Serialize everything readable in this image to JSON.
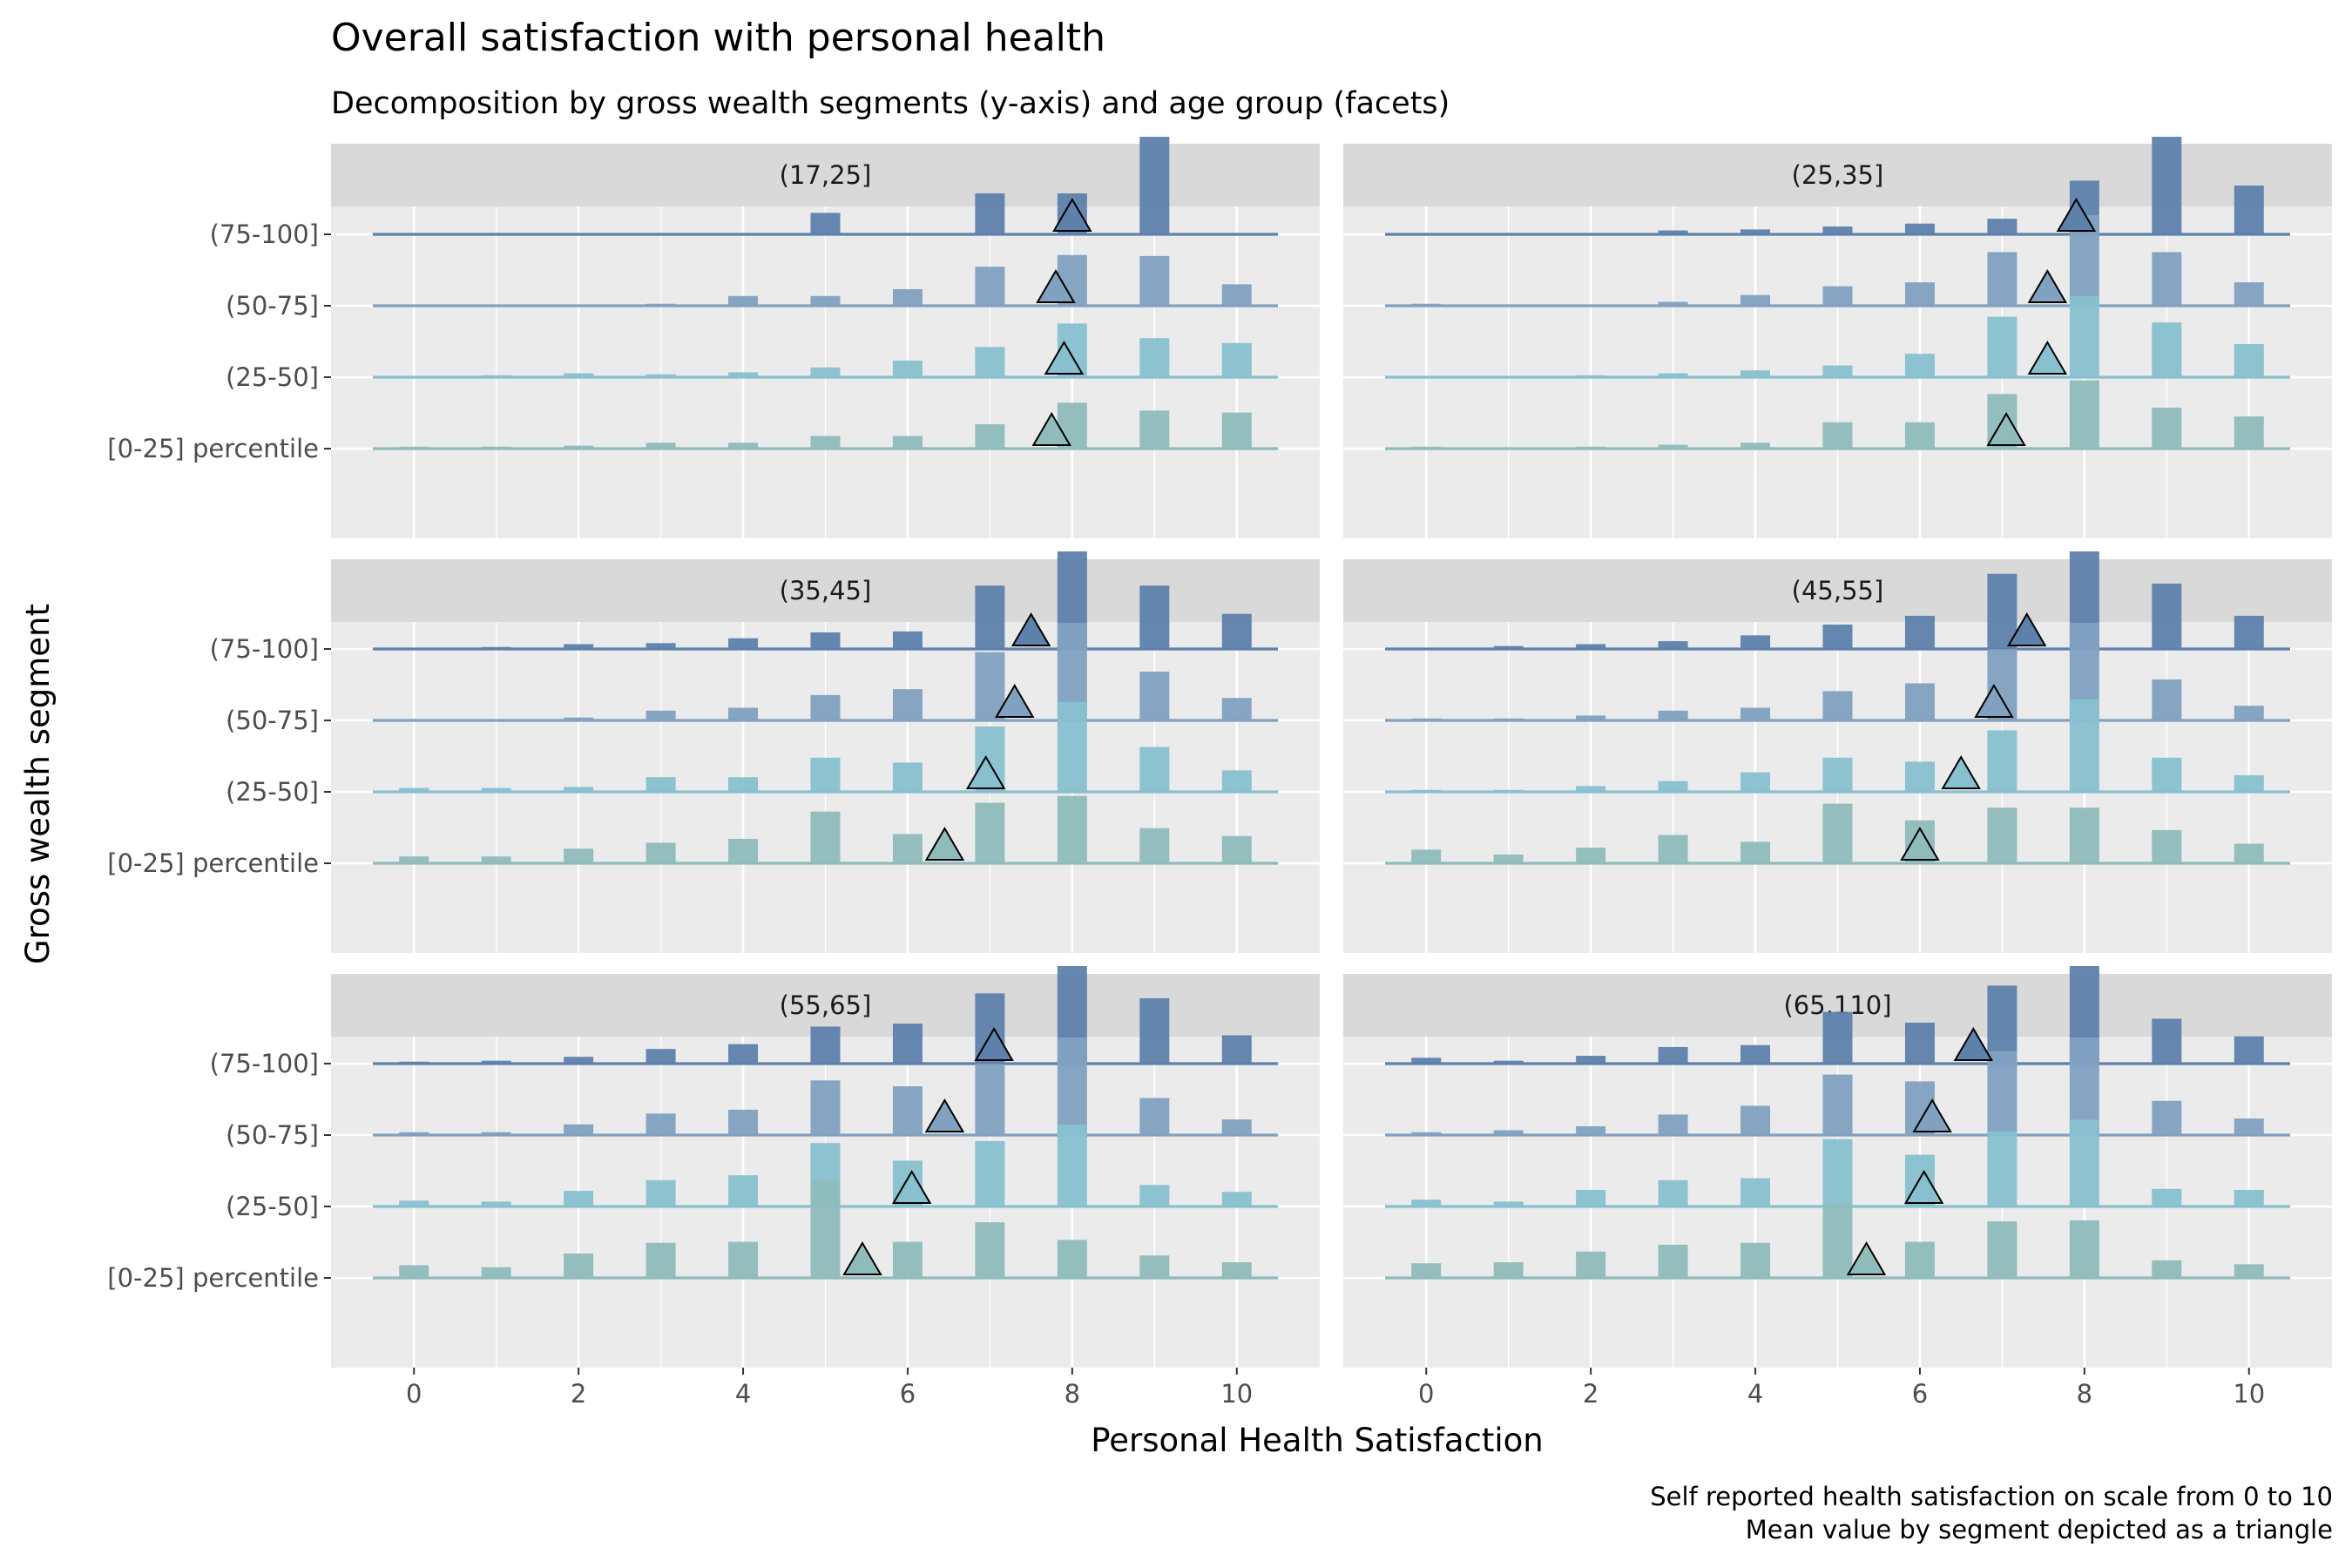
{
  "chart_data": {
    "type": "bar",
    "title": "Overall satisfaction with personal health",
    "subtitle": "Decomposition by gross wealth segments (y-axis) and age group (facets)",
    "xlabel": "Personal Health Satisfaction",
    "ylabel": "Gross wealth segment",
    "caption": [
      "Self reported health satisfaction on scale from 0 to 10",
      "Mean value by segment depicted as a triangle"
    ],
    "x_ticks": [
      0,
      2,
      4,
      6,
      8,
      10
    ],
    "xlim": [
      -0.5,
      10.5
    ],
    "segments": [
      "[0-25] percentile",
      "(25-50]",
      "(50-75]",
      "(75-100]"
    ],
    "segment_colors": [
      "#8fbcbb",
      "#88c0d0",
      "#81a1c1",
      "#5e81ac"
    ],
    "mean_marker": "triangle",
    "values_unit": "relative bar height (share of respondents, scaled)",
    "facets": [
      {
        "label": "(17,25]",
        "series": [
          {
            "name": "[0-25] percentile",
            "mean": 7.75,
            "values": [
              0.02,
              0.02,
              0.03,
              0.06,
              0.06,
              0.13,
              0.13,
              0.25,
              0.47,
              0.39,
              0.37
            ]
          },
          {
            "name": "(25-50]",
            "mean": 7.9,
            "values": [
              0.01,
              0.02,
              0.04,
              0.03,
              0.05,
              0.1,
              0.17,
              0.31,
              0.55,
              0.4,
              0.35
            ]
          },
          {
            "name": "(50-75]",
            "mean": 7.8,
            "values": [
              0.0,
              0.01,
              0.01,
              0.02,
              0.1,
              0.1,
              0.17,
              0.4,
              0.52,
              0.51,
              0.22
            ]
          },
          {
            "name": "(75-100]",
            "mean": 8.0,
            "values": [
              0.0,
              0.0,
              0.0,
              0.0,
              0.0,
              0.22,
              0.0,
              0.42,
              0.42,
              1.0,
              0.0
            ]
          }
        ]
      },
      {
        "label": "(25,35]",
        "series": [
          {
            "name": "[0-25] percentile",
            "mean": 7.05,
            "values": [
              0.02,
              0.01,
              0.02,
              0.04,
              0.06,
              0.27,
              0.27,
              0.56,
              0.7,
              0.42,
              0.33
            ]
          },
          {
            "name": "(25-50]",
            "mean": 7.55,
            "values": [
              0.01,
              0.01,
              0.02,
              0.04,
              0.07,
              0.12,
              0.24,
              0.62,
              0.83,
              0.56,
              0.34
            ]
          },
          {
            "name": "(50-75]",
            "mean": 7.55,
            "values": [
              0.02,
              0.01,
              0.01,
              0.04,
              0.11,
              0.2,
              0.24,
              0.55,
              0.93,
              0.55,
              0.24
            ]
          },
          {
            "name": "(75-100]",
            "mean": 7.9,
            "values": [
              0.0,
              0.0,
              0.0,
              0.04,
              0.05,
              0.08,
              0.11,
              0.16,
              0.55,
              1.0,
              0.5
            ]
          }
        ]
      },
      {
        "label": "(35,45]",
        "series": [
          {
            "name": "[0-25] percentile",
            "mean": 6.45,
            "values": [
              0.07,
              0.07,
              0.15,
              0.21,
              0.25,
              0.53,
              0.3,
              0.62,
              0.69,
              0.36,
              0.28
            ]
          },
          {
            "name": "(25-50]",
            "mean": 6.95,
            "values": [
              0.04,
              0.04,
              0.05,
              0.15,
              0.15,
              0.35,
              0.3,
              0.67,
              0.92,
              0.46,
              0.22
            ]
          },
          {
            "name": "(50-75]",
            "mean": 7.3,
            "values": [
              0.01,
              0.01,
              0.03,
              0.1,
              0.13,
              0.26,
              0.32,
              0.7,
              1.0,
              0.5,
              0.23
            ]
          },
          {
            "name": "(75-100]",
            "mean": 7.5,
            "values": [
              0.01,
              0.02,
              0.05,
              0.06,
              0.11,
              0.17,
              0.18,
              0.65,
              1.0,
              0.65,
              0.36
            ]
          }
        ]
      },
      {
        "label": "(45,55]",
        "series": [
          {
            "name": "[0-25] percentile",
            "mean": 6.0,
            "values": [
              0.14,
              0.09,
              0.16,
              0.29,
              0.22,
              0.61,
              0.44,
              0.57,
              0.57,
              0.34,
              0.2
            ]
          },
          {
            "name": "(25-50]",
            "mean": 6.5,
            "values": [
              0.02,
              0.02,
              0.06,
              0.11,
              0.2,
              0.35,
              0.31,
              0.63,
              0.95,
              0.35,
              0.17
            ]
          },
          {
            "name": "(50-75]",
            "mean": 6.9,
            "values": [
              0.02,
              0.02,
              0.05,
              0.1,
              0.13,
              0.3,
              0.38,
              0.73,
              1.0,
              0.42,
              0.15
            ]
          },
          {
            "name": "(75-100]",
            "mean": 7.3,
            "values": [
              0.01,
              0.03,
              0.05,
              0.08,
              0.14,
              0.25,
              0.34,
              0.77,
              1.0,
              0.67,
              0.34
            ]
          }
        ]
      },
      {
        "label": "(55,65]",
        "series": [
          {
            "name": "[0-25] percentile",
            "mean": 5.45,
            "values": [
              0.13,
              0.11,
              0.25,
              0.36,
              0.37,
              1.0,
              0.37,
              0.57,
              0.39,
              0.23,
              0.16
            ]
          },
          {
            "name": "(25-50]",
            "mean": 6.05,
            "values": [
              0.06,
              0.05,
              0.16,
              0.27,
              0.32,
              0.65,
              0.47,
              0.67,
              0.84,
              0.22,
              0.15
            ]
          },
          {
            "name": "(50-75]",
            "mean": 6.45,
            "values": [
              0.03,
              0.03,
              0.11,
              0.22,
              0.26,
              0.56,
              0.5,
              0.73,
              1.0,
              0.38,
              0.16
            ]
          },
          {
            "name": "(75-100]",
            "mean": 7.05,
            "values": [
              0.02,
              0.03,
              0.07,
              0.15,
              0.2,
              0.38,
              0.41,
              0.72,
              1.0,
              0.67,
              0.29
            ]
          }
        ]
      },
      {
        "label": "(65,110]",
        "series": [
          {
            "name": "[0-25] percentile",
            "mean": 5.35,
            "values": [
              0.15,
              0.16,
              0.27,
              0.34,
              0.36,
              0.76,
              0.37,
              0.58,
              0.59,
              0.18,
              0.14
            ]
          },
          {
            "name": "(25-50]",
            "mean": 6.05,
            "values": [
              0.07,
              0.05,
              0.17,
              0.27,
              0.29,
              0.69,
              0.53,
              0.77,
              0.89,
              0.18,
              0.17
            ]
          },
          {
            "name": "(50-75]",
            "mean": 6.15,
            "values": [
              0.03,
              0.05,
              0.09,
              0.21,
              0.3,
              0.62,
              0.55,
              0.86,
              1.0,
              0.35,
              0.17
            ]
          },
          {
            "name": "(75-100]",
            "mean": 6.65,
            "values": [
              0.06,
              0.03,
              0.08,
              0.17,
              0.19,
              0.53,
              0.42,
              0.8,
              1.0,
              0.46,
              0.28
            ]
          }
        ]
      }
    ]
  }
}
